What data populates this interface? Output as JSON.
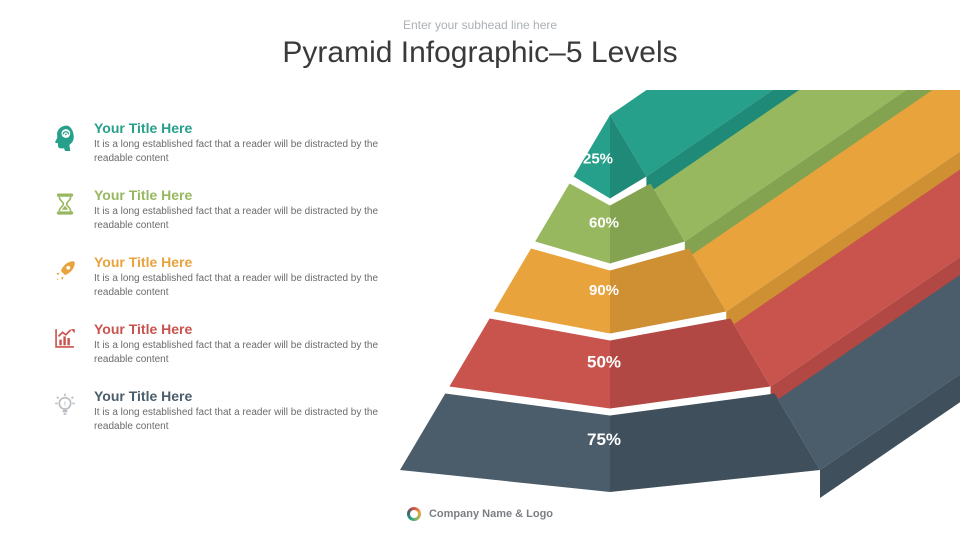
{
  "subhead": "Enter your subhead line here",
  "title": "Pyramid Infographic–5 Levels",
  "footer": "Company Name & Logo",
  "colors": {
    "teal": "#26a08a",
    "teal_d": "#1e8a77",
    "green": "#97b85f",
    "green_d": "#83a351",
    "gold": "#e8a33d",
    "gold_d": "#cf9034",
    "red": "#c9534d",
    "red_d": "#b24843",
    "navy": "#4b5d6b",
    "navy_d": "#3f505c",
    "text_gray": "#6b6b6b"
  },
  "items": [
    {
      "title": "Your Title Here",
      "body": "It is a long established fact that a reader will be distracted by the readable content",
      "color": "#26a08a",
      "icon": "head"
    },
    {
      "title": "Your Title Here",
      "body": "It is a long established fact that a reader will be distracted by the readable content",
      "color": "#97b85f",
      "icon": "hourglass"
    },
    {
      "title": "Your Title Here",
      "body": "It is a long established fact that a reader will be distracted by the readable content",
      "color": "#e8a33d",
      "icon": "rocket"
    },
    {
      "title": "Your Title Here",
      "body": "It is a long established fact that a reader will be distracted by the readable content",
      "color": "#c9534d",
      "icon": "chart"
    },
    {
      "title": "Your Title Here",
      "body": "It is a long established fact that a reader will be distracted by the readable content",
      "color": "#4b5d6b",
      "icon": "bulb"
    }
  ],
  "pyramid": {
    "type": "infographic",
    "background": "#ffffff",
    "label_fontsize": 15,
    "label_color": "#ffffff",
    "label_weight": 700,
    "levels": [
      {
        "value": "25%",
        "color": "#26a08a",
        "shade": "#1e8a77"
      },
      {
        "value": "60%",
        "color": "#97b85f",
        "shade": "#83a351"
      },
      {
        "value": "90%",
        "color": "#e8a33d",
        "shade": "#cf9034"
      },
      {
        "value": "50%",
        "color": "#c9534d",
        "shade": "#b24843"
      },
      {
        "value": "75%",
        "color": "#4b5d6b",
        "shade": "#3f505c"
      }
    ]
  }
}
